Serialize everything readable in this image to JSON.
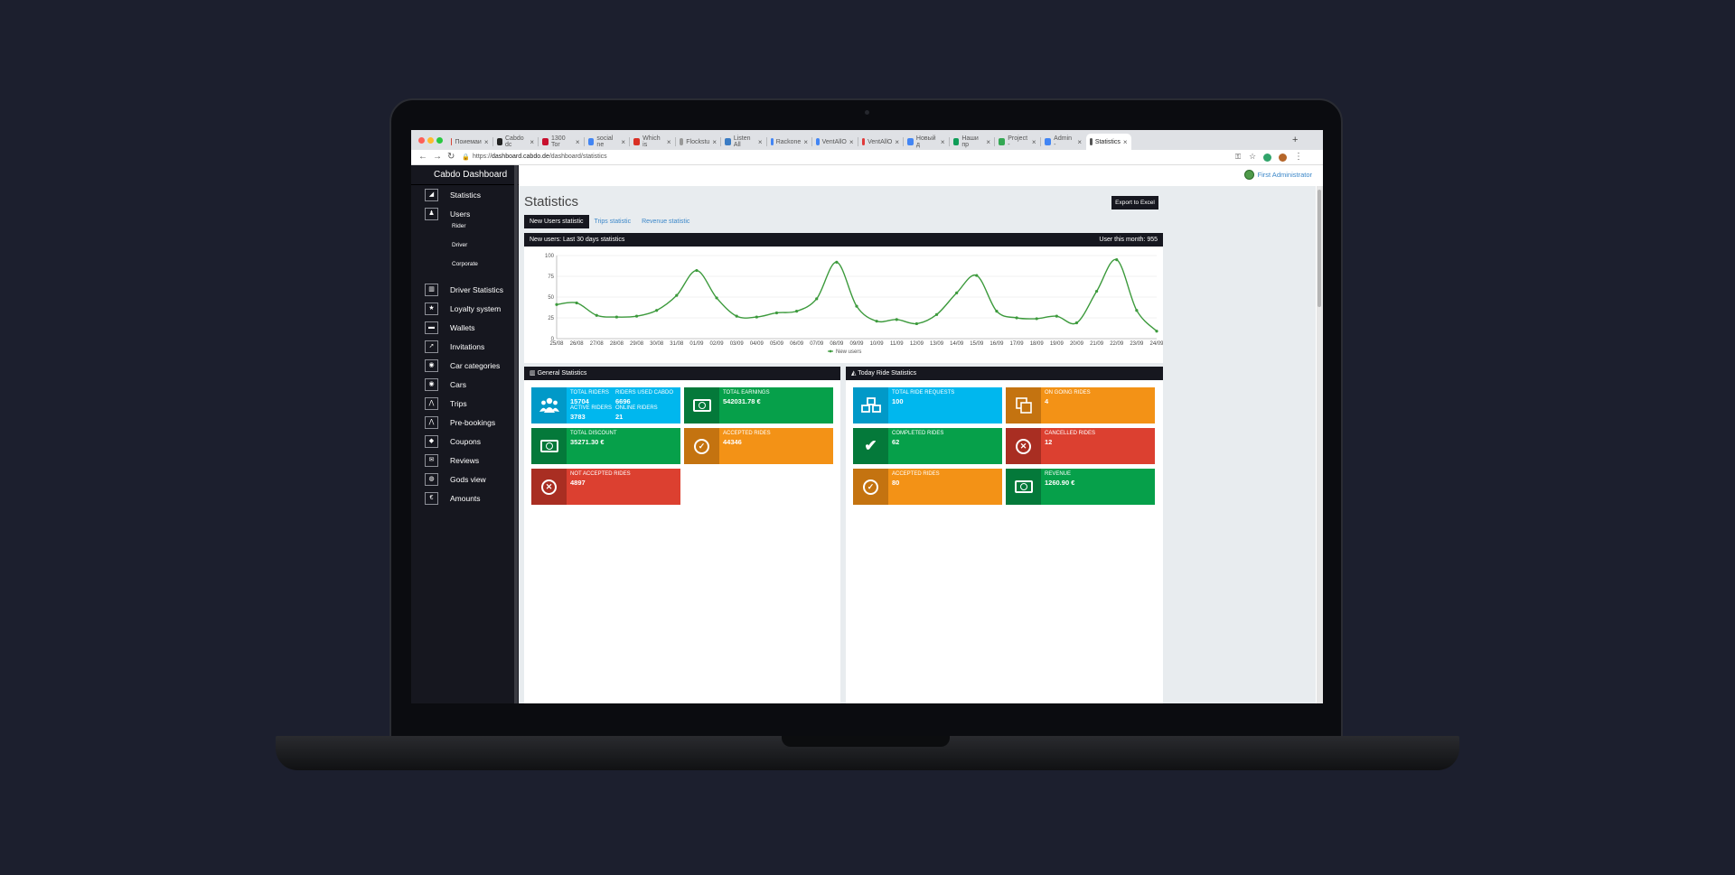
{
  "browser": {
    "tabs": [
      "Поиемаи",
      "Cabdo dc",
      "1300 Tor",
      "social ne",
      "Which is",
      "Flockstu",
      "Listen All",
      "Rackone",
      "VentAllO",
      "VentAllO",
      "Новый д",
      "Наши пр",
      "Project -",
      "Admin -",
      "Statistics"
    ],
    "url_prefix": "https://",
    "url_host": "dashboard.cabdo.de",
    "url_path": "/dashboard/statistics"
  },
  "sidebar": {
    "brand": "Cabdo Dashboard",
    "items": [
      {
        "label": "Statistics",
        "icon": "signal-icon"
      },
      {
        "label": "Users",
        "icon": "user-icon"
      },
      {
        "label": "Driver Statistics",
        "icon": "bar-chart-icon"
      },
      {
        "label": "Loyalty system",
        "icon": "star-icon"
      },
      {
        "label": "Wallets",
        "icon": "wallet-icon"
      },
      {
        "label": "Invitations",
        "icon": "send-icon"
      },
      {
        "label": "Car categories",
        "icon": "car-icon"
      },
      {
        "label": "Cars",
        "icon": "car-icon"
      },
      {
        "label": "Trips",
        "icon": "road-icon"
      },
      {
        "label": "Pre-bookings",
        "icon": "road-icon"
      },
      {
        "label": "Coupons",
        "icon": "tag-icon"
      },
      {
        "label": "Reviews",
        "icon": "comment-icon"
      },
      {
        "label": "Gods view",
        "icon": "globe-icon"
      },
      {
        "label": "Amounts",
        "icon": "euro-icon"
      }
    ],
    "sub_items": [
      "Rider",
      "Driver",
      "Corporate"
    ]
  },
  "header": {
    "admin_name": "First Administrator"
  },
  "page": {
    "title": "Statistics",
    "export_label": "Export to Excel",
    "tabs": [
      "New Users statistic",
      "Trips statistic",
      "Revenue statistic"
    ]
  },
  "chart_panel": {
    "title": "New users: Last 30 days statistics",
    "month_label": "User this month: 955"
  },
  "chart_data": {
    "type": "line",
    "categories": [
      "25/08",
      "26/08",
      "27/08",
      "28/08",
      "29/08",
      "30/08",
      "31/08",
      "01/09",
      "02/09",
      "03/09",
      "04/09",
      "05/09",
      "06/09",
      "07/09",
      "08/09",
      "09/09",
      "10/09",
      "11/09",
      "12/09",
      "13/09",
      "14/09",
      "15/09",
      "16/09",
      "17/09",
      "18/09",
      "19/09",
      "20/09",
      "21/09",
      "22/09",
      "23/09",
      "24/09"
    ],
    "series": [
      {
        "name": "New users",
        "values": [
          41,
          43,
          28,
          26,
          27,
          34,
          52,
          82,
          49,
          27,
          26,
          31,
          33,
          48,
          92,
          39,
          21,
          23,
          18,
          29,
          55,
          76,
          33,
          25,
          24,
          27,
          19,
          57,
          95,
          34,
          9
        ]
      }
    ],
    "ylim": [
      0,
      100
    ],
    "yticks": [
      0,
      25,
      50,
      75,
      100
    ],
    "color": "#3c9a3c",
    "legend": "bottom"
  },
  "general": {
    "title": "General Statistics",
    "riders": {
      "total_label": "TOTAL RIDERS",
      "total": "15704",
      "used_label": "RIDERS USED CABDO",
      "used": "6696",
      "active_label": "ACTIVE RIDERS",
      "active": "3783",
      "online_label": "ONLINE RIDERS",
      "online": "21"
    },
    "earnings": {
      "label": "TOTAL EARNINGS",
      "value": "542031.78 €"
    },
    "discount": {
      "label": "TOTAL DISCOUNT",
      "value": "35271.30 €"
    },
    "accepted": {
      "label": "ACCEPTED RIDES",
      "value": "44346"
    },
    "not_accepted": {
      "label": "NOT ACCEPTED RIDES",
      "value": "4897"
    }
  },
  "today": {
    "title": "Today Ride Statistics",
    "requests": {
      "label": "TOTAL RIDE REQUESTS",
      "value": "100"
    },
    "ongoing": {
      "label": "ON GOING RIDES",
      "value": "4"
    },
    "completed": {
      "label": "COMPLETED RIDES",
      "value": "62"
    },
    "cancelled": {
      "label": "CANCELLED RIDES",
      "value": "12"
    },
    "accepted": {
      "label": "ACCEPTED RIDES",
      "value": "80"
    },
    "revenue": {
      "label": "REVENUE",
      "value": "1260.90 €"
    }
  }
}
